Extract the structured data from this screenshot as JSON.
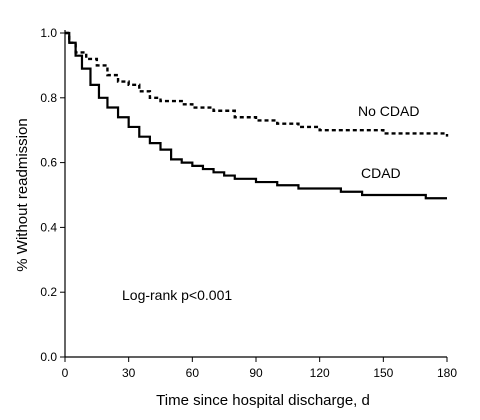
{
  "chart_data": {
    "type": "line",
    "title": "",
    "xlabel": "Time since hospital discharge, d",
    "ylabel": "% Without readmission",
    "xlim": [
      0,
      180
    ],
    "ylim": [
      0,
      1.0
    ],
    "x_ticks": [
      0,
      30,
      60,
      90,
      120,
      150,
      180
    ],
    "y_ticks": [
      0.0,
      0.2,
      0.4,
      0.6,
      0.8,
      1.0
    ],
    "y_tick_labels": [
      "0.0",
      "0.2",
      "0.4",
      "0.6",
      "0.8",
      "1.0"
    ],
    "grid": false,
    "annotation": "Log-rank p<0.001",
    "series": [
      {
        "name": "No CDAD",
        "line_style": "dashed",
        "color": "#000000",
        "x": [
          0,
          2,
          5,
          10,
          15,
          20,
          25,
          30,
          35,
          40,
          45,
          50,
          55,
          60,
          70,
          80,
          90,
          100,
          110,
          120,
          130,
          140,
          150,
          160,
          170,
          180
        ],
        "y": [
          1.0,
          0.97,
          0.94,
          0.92,
          0.9,
          0.87,
          0.85,
          0.84,
          0.82,
          0.8,
          0.79,
          0.79,
          0.78,
          0.77,
          0.76,
          0.74,
          0.73,
          0.72,
          0.71,
          0.7,
          0.7,
          0.7,
          0.69,
          0.69,
          0.69,
          0.68
        ]
      },
      {
        "name": "CDAD",
        "line_style": "solid",
        "color": "#000000",
        "x": [
          0,
          2,
          5,
          8,
          12,
          16,
          20,
          25,
          30,
          35,
          40,
          45,
          50,
          55,
          60,
          65,
          70,
          75,
          80,
          90,
          100,
          110,
          120,
          130,
          140,
          150,
          160,
          170,
          180
        ],
        "y": [
          1.0,
          0.97,
          0.93,
          0.89,
          0.84,
          0.8,
          0.77,
          0.74,
          0.71,
          0.68,
          0.66,
          0.64,
          0.61,
          0.6,
          0.59,
          0.58,
          0.57,
          0.56,
          0.55,
          0.54,
          0.53,
          0.52,
          0.52,
          0.51,
          0.5,
          0.5,
          0.5,
          0.49,
          0.49
        ]
      }
    ]
  }
}
